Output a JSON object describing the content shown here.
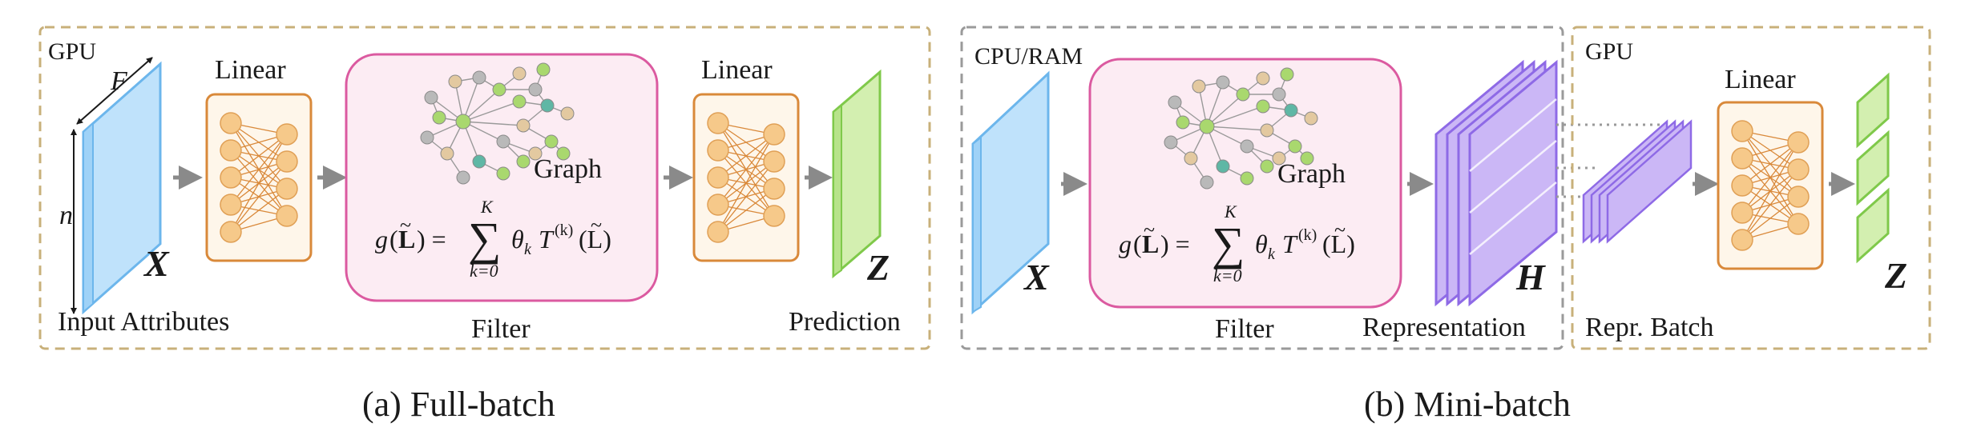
{
  "panel_a": {
    "device": "GPU",
    "dim_f": "F",
    "dim_n": "n",
    "x_symbol": "X",
    "input_caption": "Input Attributes",
    "linear_1": "Linear",
    "graph_label": "Graph",
    "filter_caption": "Filter",
    "linear_2": "Linear",
    "z_symbol": "Z",
    "prediction_caption": "Prediction",
    "caption": "(a) Full-batch"
  },
  "panel_b": {
    "cpu_device": "CPU/RAM",
    "x_symbol": "X",
    "graph_label": "Graph",
    "filter_caption": "Filter",
    "h_symbol": "H",
    "representation_caption": "Representation",
    "gpu_device": "GPU",
    "linear": "Linear",
    "z_symbol": "Z",
    "batch_caption": "Repr. Batch",
    "caption": "(b) Mini-batch"
  },
  "formula": {
    "g": "g",
    "lparen": "(",
    "L": "L",
    "rparen_eq": ") =",
    "sum": "∑",
    "K": "K",
    "k0": "k=0",
    "theta": "θ",
    "k_sub": "k",
    "T": "T",
    "sup": "(k)",
    "tail": "(L)",
    "tilde": "~"
  },
  "colors": {
    "frame": "#c8b07a",
    "cpu_frame": "#9a9a9a",
    "box": "#d9893a",
    "filter": "#db5aa0",
    "filter_fill": "#fcecf3",
    "neuron": "#f6c98a",
    "x_plane": "#bfe2fb",
    "z_plane": "#d3efb0",
    "h_plane": "#cbb7f6",
    "arrow": "#8a8a8a"
  }
}
